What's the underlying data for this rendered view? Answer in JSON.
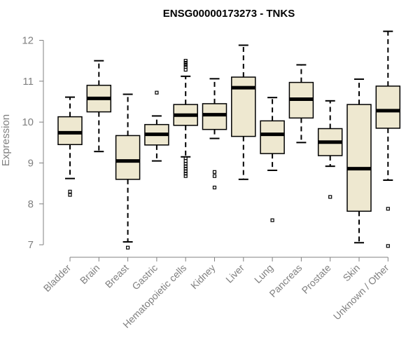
{
  "chart_data": {
    "type": "boxplot",
    "title": "ENSG00000173273 - TNKS",
    "xlabel": "",
    "ylabel": "Expression",
    "ylim": [
      6.9,
      12.3
    ],
    "yticks": [
      7,
      8,
      9,
      10,
      11,
      12
    ],
    "box_fill": "#EEE8D0",
    "median_color": "#000000",
    "outlier_shape": "open-square",
    "categories": [
      "Bladder",
      "Brain",
      "Breast",
      "Gastric",
      "Hematopoietic cells",
      "Kidney",
      "Liver",
      "Lung",
      "Pancreas",
      "Prostate",
      "Skin",
      "Unknown / Other"
    ],
    "boxes": [
      {
        "name": "Bladder",
        "whisker_low": 8.62,
        "q1": 9.45,
        "median": 9.74,
        "q3": 10.13,
        "whisker_high": 10.61,
        "outliers": [
          8.22,
          8.3
        ]
      },
      {
        "name": "Brain",
        "whisker_low": 9.28,
        "q1": 10.25,
        "median": 10.58,
        "q3": 10.9,
        "whisker_high": 11.5,
        "outliers": []
      },
      {
        "name": "Breast",
        "whisker_low": 7.07,
        "q1": 8.6,
        "median": 9.05,
        "q3": 9.67,
        "whisker_high": 10.68,
        "outliers": [
          6.93
        ]
      },
      {
        "name": "Gastric",
        "whisker_low": 9.05,
        "q1": 9.44,
        "median": 9.7,
        "q3": 9.94,
        "whisker_high": 10.15,
        "outliers": [
          10.72
        ]
      },
      {
        "name": "Hematopoietic cells",
        "whisker_low": 9.15,
        "q1": 9.92,
        "median": 10.17,
        "q3": 10.43,
        "whisker_high": 11.12,
        "outliers": [
          11.5,
          11.45,
          11.4,
          11.35,
          11.28,
          9.12,
          9.05,
          8.98,
          8.92,
          8.86,
          8.8,
          8.74,
          8.68
        ]
      },
      {
        "name": "Kidney",
        "whisker_low": 9.6,
        "q1": 9.82,
        "median": 10.18,
        "q3": 10.45,
        "whisker_high": 11.06,
        "outliers": [
          8.78,
          8.68,
          8.4
        ]
      },
      {
        "name": "Liver",
        "whisker_low": 8.6,
        "q1": 9.65,
        "median": 10.84,
        "q3": 11.1,
        "whisker_high": 11.88,
        "outliers": []
      },
      {
        "name": "Lung",
        "whisker_low": 8.82,
        "q1": 9.23,
        "median": 9.7,
        "q3": 10.03,
        "whisker_high": 10.6,
        "outliers": [
          7.6
        ]
      },
      {
        "name": "Pancreas",
        "whisker_low": 9.5,
        "q1": 10.1,
        "median": 10.56,
        "q3": 10.97,
        "whisker_high": 11.4,
        "outliers": []
      },
      {
        "name": "Prostate",
        "whisker_low": 8.92,
        "q1": 9.18,
        "median": 9.51,
        "q3": 9.84,
        "whisker_high": 10.52,
        "outliers": [
          8.17
        ]
      },
      {
        "name": "Skin",
        "whisker_low": 7.05,
        "q1": 7.82,
        "median": 8.86,
        "q3": 10.43,
        "whisker_high": 11.05,
        "outliers": []
      },
      {
        "name": "Unknown / Other",
        "whisker_low": 8.58,
        "q1": 9.85,
        "median": 10.28,
        "q3": 10.88,
        "whisker_high": 12.22,
        "outliers": [
          7.88,
          6.97
        ]
      }
    ]
  }
}
